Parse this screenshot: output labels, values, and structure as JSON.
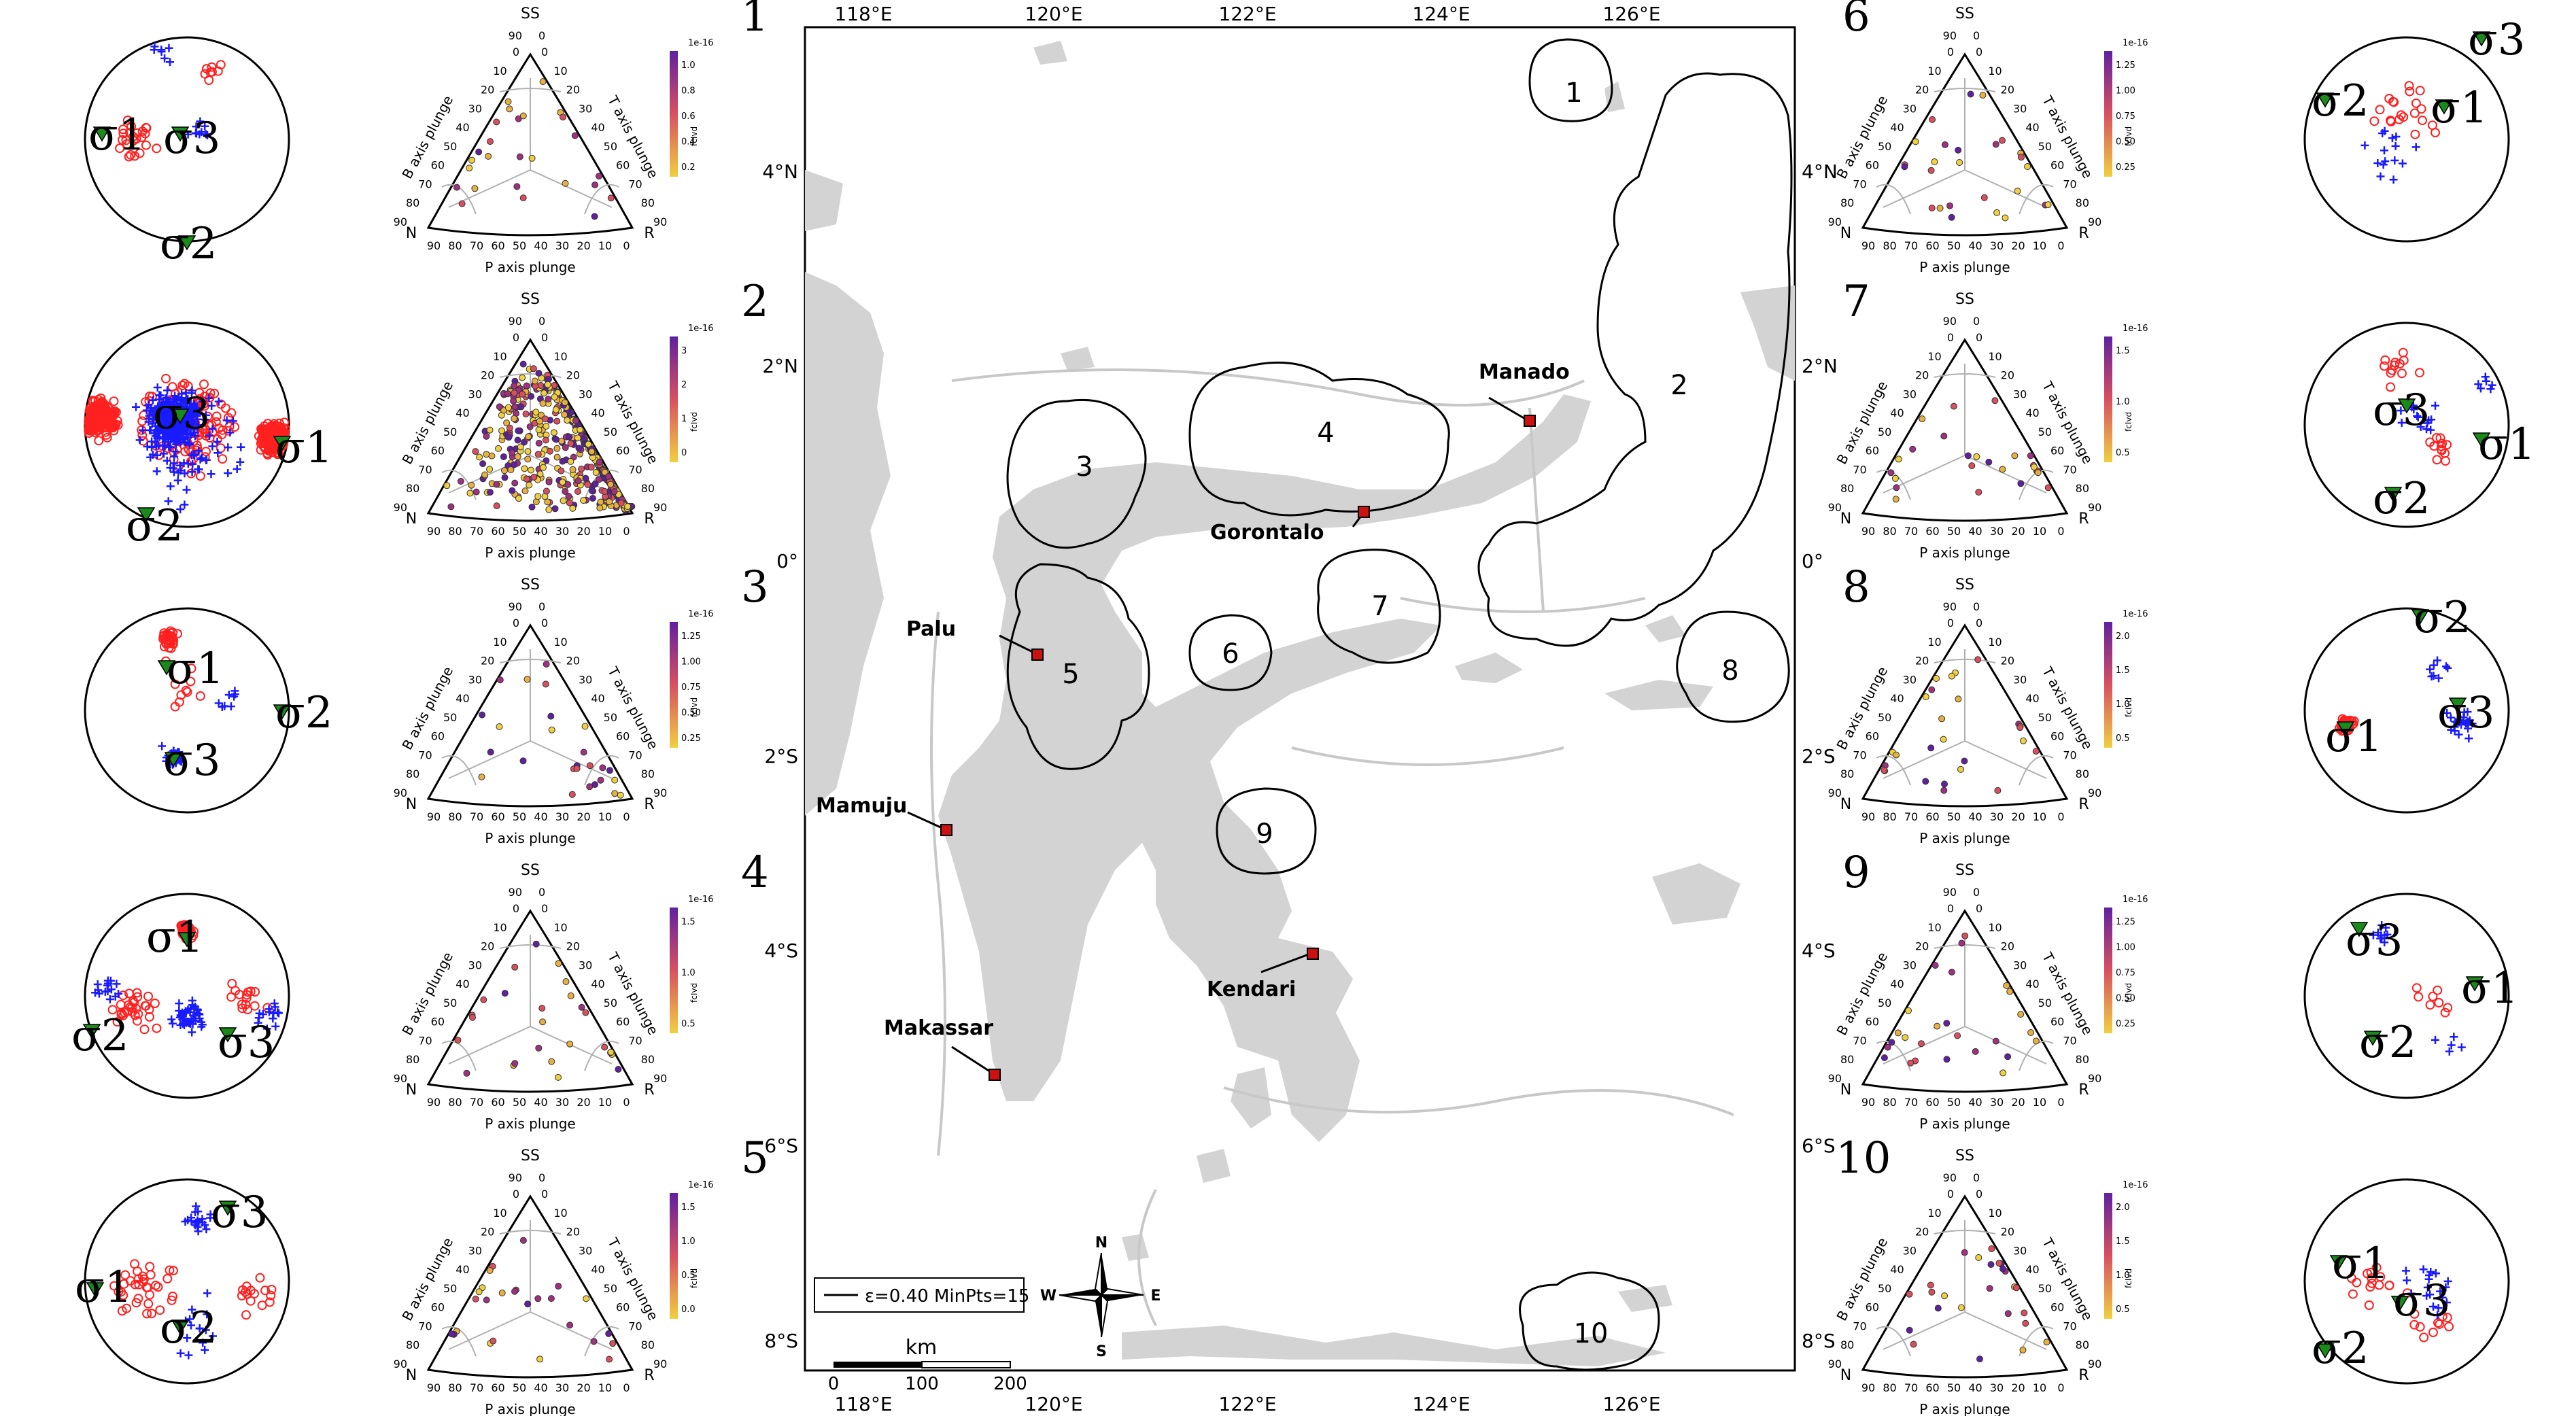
{
  "map": {
    "lon_ticks": [
      "118°E",
      "120°E",
      "122°E",
      "124°E",
      "126°E"
    ],
    "lat_ticks": [
      "4°N",
      "2°N",
      "0°",
      "2°S",
      "4°S",
      "6°S",
      "8°S"
    ],
    "clusters": [
      "1",
      "2",
      "3",
      "4",
      "5",
      "6",
      "7",
      "8",
      "9",
      "10"
    ],
    "cities": [
      "Manado",
      "Gorontalo",
      "Palu",
      "Mamuju",
      "Kendari",
      "Makassar"
    ],
    "legend": "ε=0.40 MinPts=15",
    "compass": {
      "n": "N",
      "s": "S",
      "e": "E",
      "w": "W"
    },
    "scale": {
      "unit": "km",
      "ticks": [
        "0",
        "100",
        "200"
      ]
    }
  },
  "panel_labels": [
    "1",
    "2",
    "3",
    "4",
    "5",
    "6",
    "7",
    "8",
    "9",
    "10"
  ],
  "ternary": {
    "top": "SS",
    "left": "N",
    "right": "R",
    "bottom_axis": "P axis plunge",
    "left_axis": "B axis plunge",
    "right_axis": "T axis plunge",
    "ticks_bottom": [
      "90",
      "80",
      "70",
      "60",
      "50",
      "40",
      "30",
      "20",
      "10",
      "0"
    ],
    "ticks_side": [
      "0",
      "10",
      "20",
      "30",
      "40",
      "50",
      "60",
      "70",
      "80",
      "90"
    ],
    "colorbar_unit": "fcIvd",
    "colorbar_exp": "1e-16",
    "colorbars": [
      [
        "1.0",
        "0.8",
        "0.6",
        "0.4",
        "0.2"
      ],
      [
        "3",
        "2",
        "1",
        "0"
      ],
      [
        "1.25",
        "1.00",
        "0.75",
        "0.50",
        "0.25"
      ],
      [
        "1.5",
        "1.0",
        "0.5"
      ],
      [
        "1.5",
        "1.0",
        "0.5",
        "0.0"
      ],
      [
        "1.25",
        "1.00",
        "0.75",
        "0.50",
        "0.25"
      ],
      [
        "1.5",
        "1.0",
        "0.5"
      ],
      [
        "2.0",
        "1.5",
        "1.0",
        "0.5"
      ],
      [
        "1.25",
        "1.00",
        "0.75",
        "0.50",
        "0.25"
      ],
      [
        "2.0",
        "1.5",
        "1.0",
        "0.5"
      ]
    ]
  },
  "stereonet": {
    "s1": "σ1",
    "s2": "σ2",
    "s3": "σ3",
    "colors": {
      "p_axis": "#ff2020",
      "t_axis": "#1a1aff",
      "triangle": "#1a8a1a"
    }
  },
  "colors": {
    "land": "#d3d3d3",
    "frame": "#000000"
  }
}
